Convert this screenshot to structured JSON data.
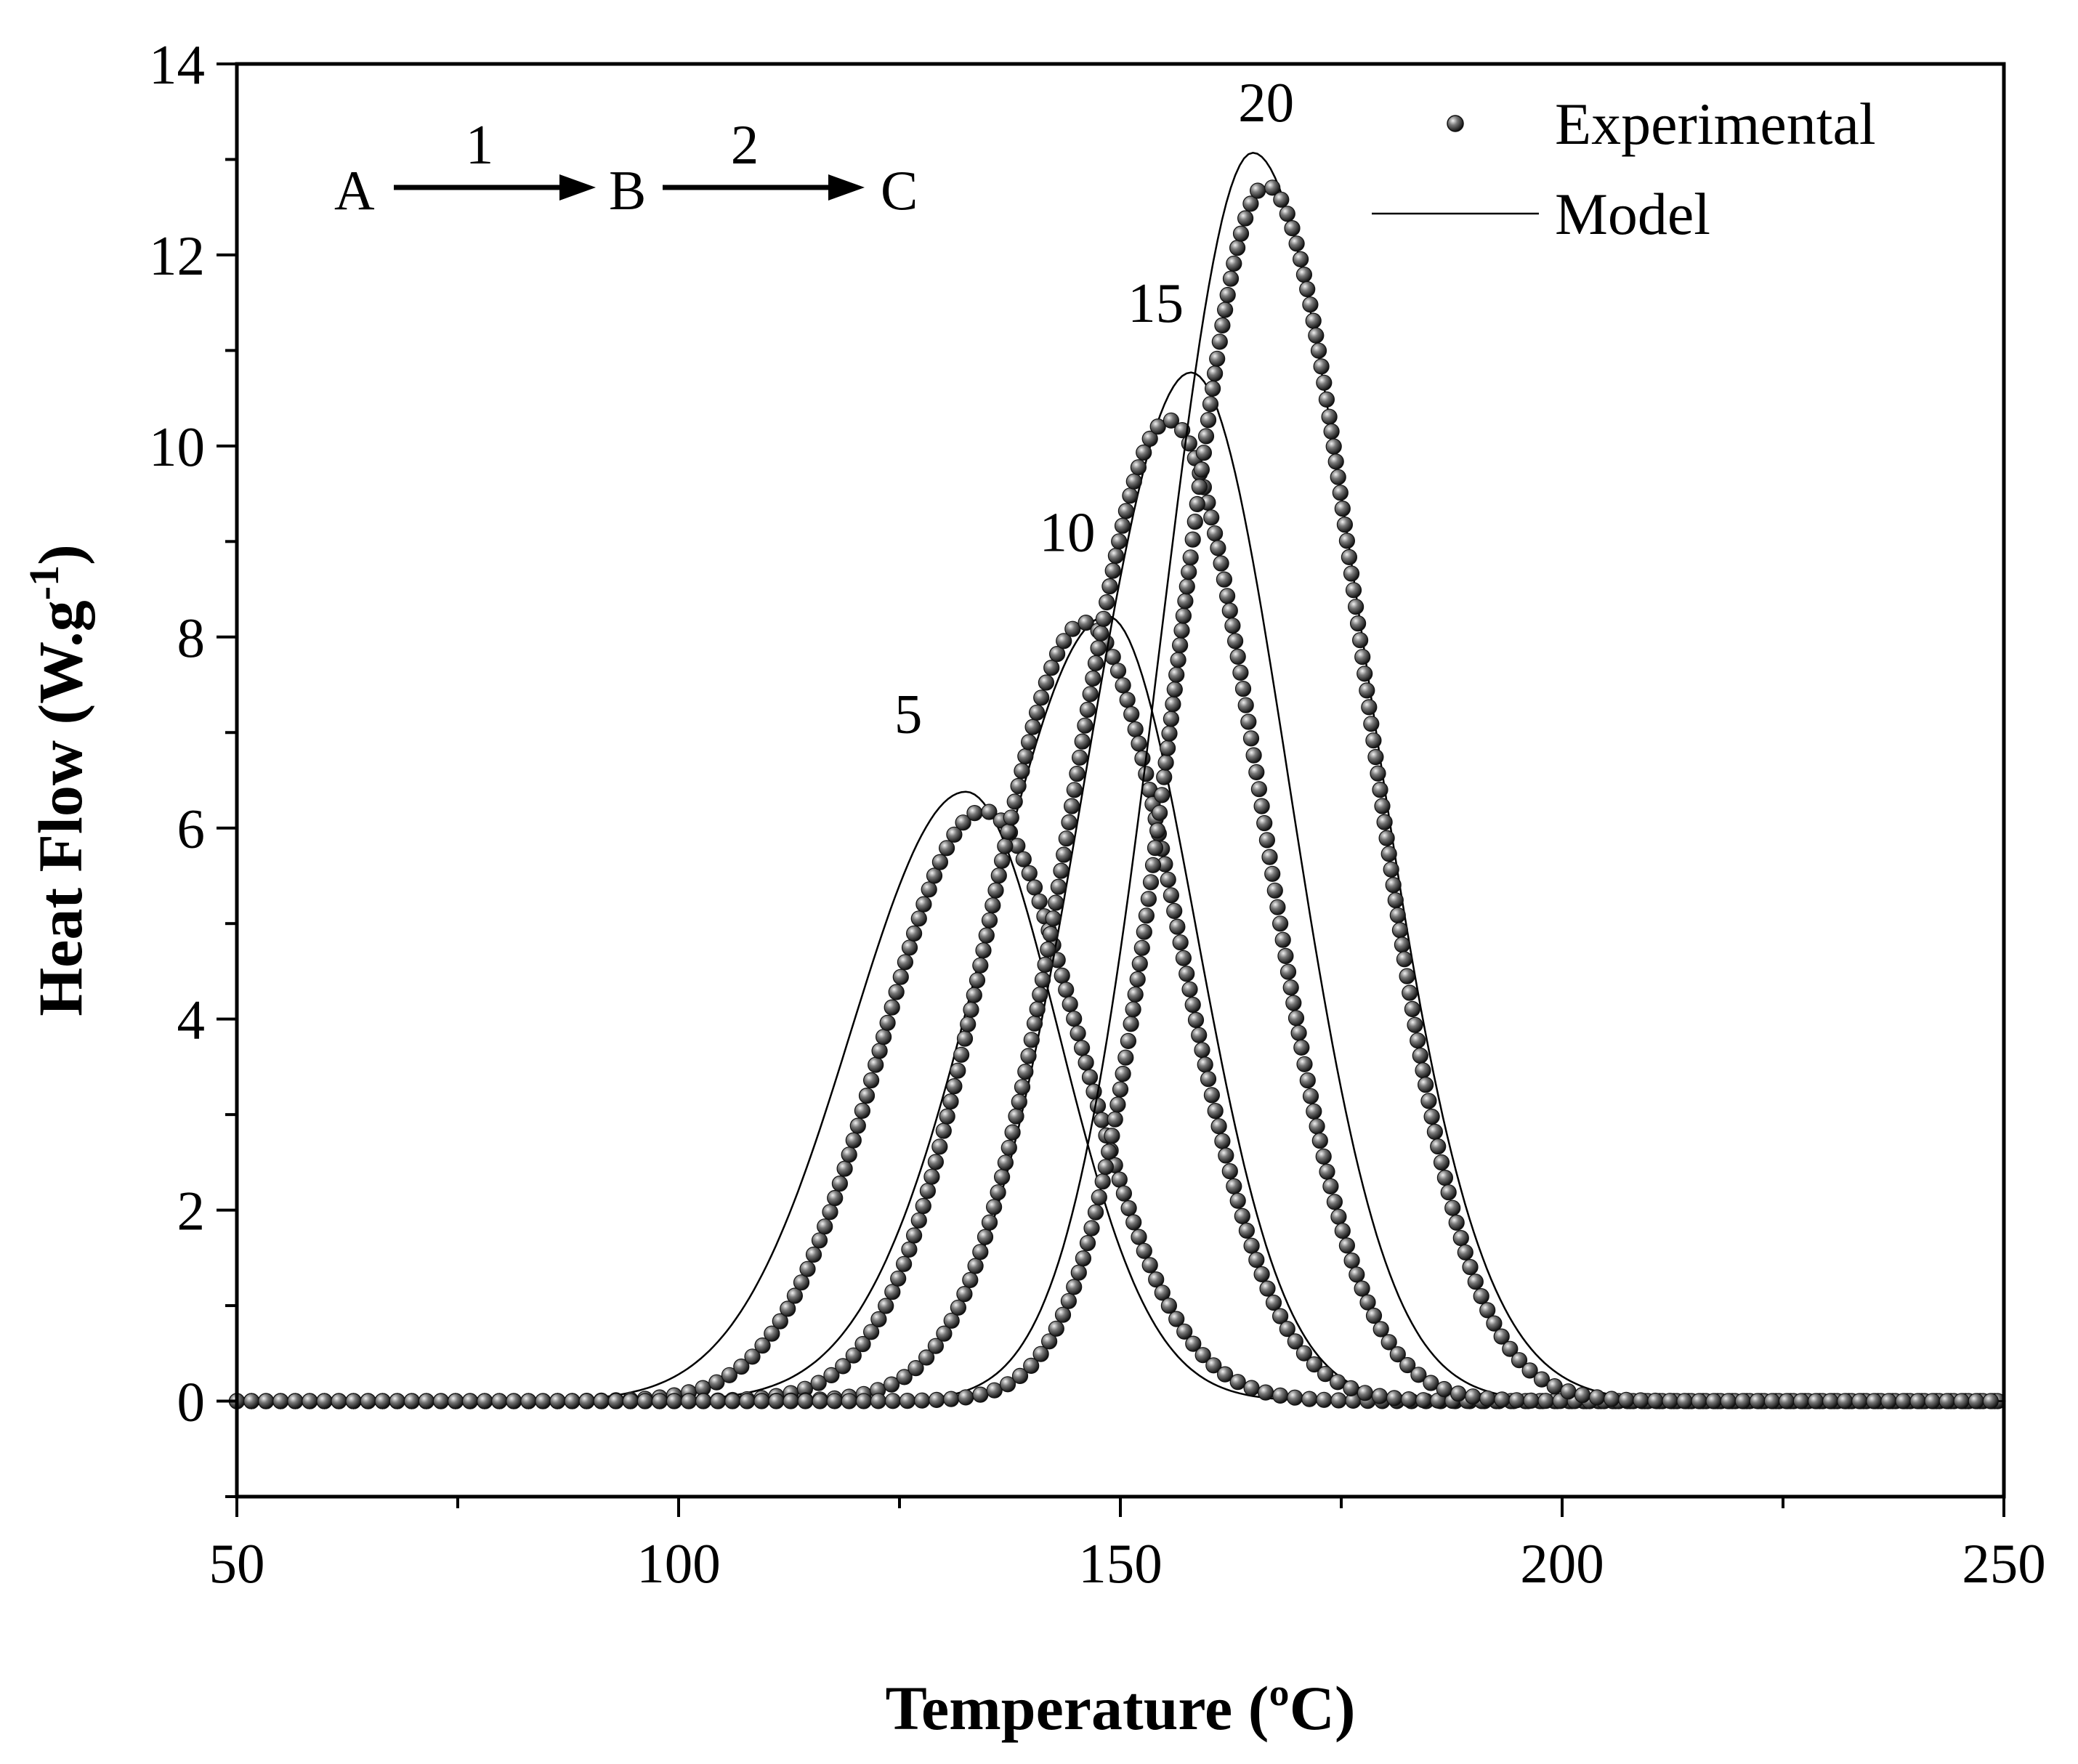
{
  "chart_data": {
    "type": "line",
    "xlabel": "Temperature (ºC)",
    "ylabel": "Heat Flow (W.g",
    "ylabel_superscript": "-1",
    "ylabel_close": ")",
    "xlim": [
      50,
      250
    ],
    "ylim": [
      -1,
      14
    ],
    "xticks": [
      50,
      100,
      150,
      200,
      250
    ],
    "yticks": [
      0,
      2,
      4,
      6,
      8,
      10,
      12,
      14
    ],
    "reaction_scheme": {
      "a": "A",
      "b": "B",
      "c": "C",
      "step1": "1",
      "step2": "2"
    },
    "legend": {
      "experimental": "Experimental",
      "model": "Model",
      "position": "top-right"
    },
    "series": [
      {
        "rate": "5",
        "label_x": 126,
        "label_y": 7.0,
        "experimental": {
          "peak_x": 134.5,
          "peak_y": 6.18,
          "sigma_left": 11.5,
          "sigma_right": 11.0
        },
        "model": {
          "peak_x": 132.5,
          "peak_y": 6.38,
          "sigma_left": 13.0,
          "sigma_right": 10.5
        }
      },
      {
        "rate": "10",
        "label_x": 144,
        "label_y": 8.9,
        "experimental": {
          "peak_x": 146.0,
          "peak_y": 8.15,
          "sigma_left": 11.0,
          "sigma_right": 10.5
        },
        "model": {
          "peak_x": 148.5,
          "peak_y": 8.22,
          "sigma_left": 13.5,
          "sigma_right": 10.0
        }
      },
      {
        "rate": "15",
        "label_x": 154,
        "label_y": 11.3,
        "experimental": {
          "peak_x": 155.5,
          "peak_y": 10.27,
          "sigma_left": 11.0,
          "sigma_right": 10.5
        },
        "model": {
          "peak_x": 158.0,
          "peak_y": 10.77,
          "sigma_left": 12.0,
          "sigma_right": 11.0
        }
      },
      {
        "rate": "20",
        "label_x": 166.5,
        "label_y": 13.4,
        "experimental": {
          "peak_x": 166.5,
          "peak_y": 12.73,
          "sigma_left": 10.0,
          "sigma_right": 11.0
        },
        "model": {
          "peak_x": 165.0,
          "peak_y": 13.07,
          "sigma_left": 10.5,
          "sigma_right": 12.5
        }
      }
    ]
  }
}
